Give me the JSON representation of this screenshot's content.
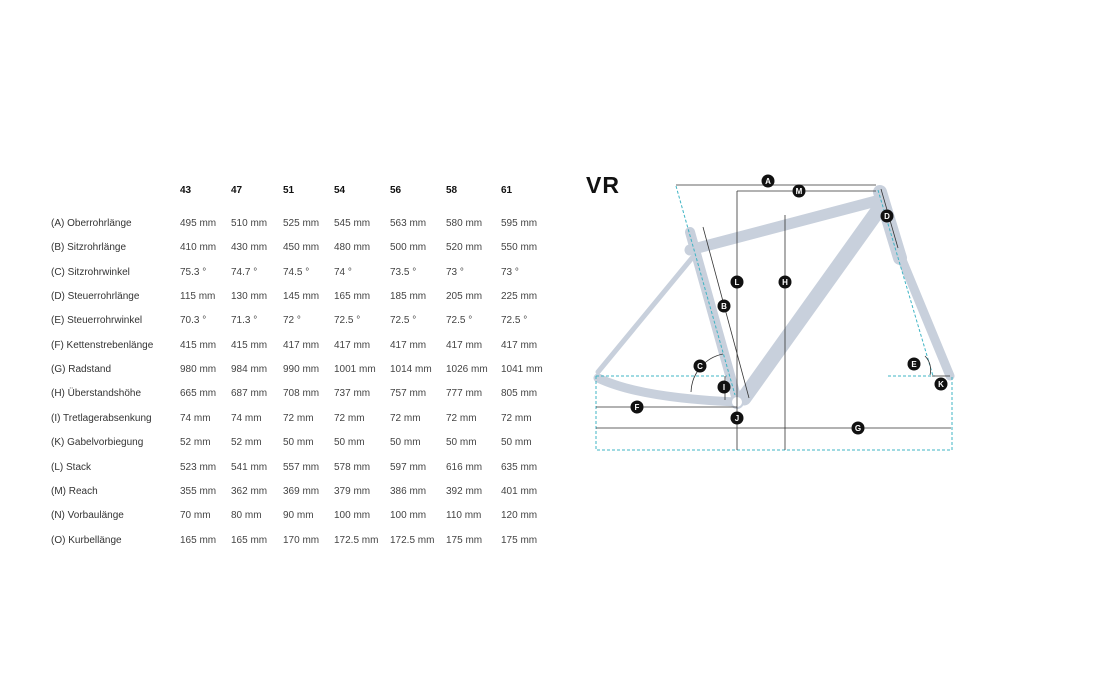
{
  "title": "VR",
  "sizes": [
    "43",
    "47",
    "51",
    "54",
    "56",
    "58",
    "61"
  ],
  "rows": [
    {
      "label": "(A) Oberrohrlänge",
      "values": [
        "495 mm",
        "510 mm",
        "525 mm",
        "545 mm",
        "563 mm",
        "580 mm",
        "595 mm"
      ]
    },
    {
      "label": "(B) Sitzrohrlänge",
      "values": [
        "410 mm",
        "430 mm",
        "450 mm",
        "480 mm",
        "500 mm",
        "520 mm",
        "550 mm"
      ]
    },
    {
      "label": "(C) Sitzrohrwinkel",
      "values": [
        "75.3 °",
        "74.7 °",
        "74.5 °",
        "74 °",
        "73.5 °",
        "73 °",
        "73 °"
      ]
    },
    {
      "label": "(D) Steuerrohrlänge",
      "values": [
        "115 mm",
        "130 mm",
        "145 mm",
        "165 mm",
        "185 mm",
        "205 mm",
        "225 mm"
      ]
    },
    {
      "label": "(E) Steuerrohrwinkel",
      "values": [
        "70.3 °",
        "71.3 °",
        "72 °",
        "72.5 °",
        "72.5 °",
        "72.5 °",
        "72.5 °"
      ]
    },
    {
      "label": "(F) Kettenstrebenlänge",
      "values": [
        "415 mm",
        "415 mm",
        "417 mm",
        "417 mm",
        "417 mm",
        "417 mm",
        "417 mm"
      ]
    },
    {
      "label": "(G) Radstand",
      "values": [
        "980 mm",
        "984 mm",
        "990 mm",
        "1001 mm",
        "1014 mm",
        "1026 mm",
        "1041 mm"
      ]
    },
    {
      "label": "(H) Überstandshöhe",
      "values": [
        "665 mm",
        "687 mm",
        "708 mm",
        "737 mm",
        "757 mm",
        "777 mm",
        "805 mm"
      ]
    },
    {
      "label": "(I) Tretlagerabsenkung",
      "values": [
        "74 mm",
        "74 mm",
        "72 mm",
        "72 mm",
        "72 mm",
        "72 mm",
        "72 mm"
      ]
    },
    {
      "label": "(K) Gabelvorbiegung",
      "values": [
        "52 mm",
        "52 mm",
        "50 mm",
        "50 mm",
        "50 mm",
        "50 mm",
        "50 mm"
      ]
    },
    {
      "label": "(L) Stack",
      "values": [
        "523 mm",
        "541 mm",
        "557 mm",
        "578 mm",
        "597 mm",
        "616 mm",
        "635 mm"
      ]
    },
    {
      "label": "(M) Reach",
      "values": [
        "355 mm",
        "362 mm",
        "369 mm",
        "379 mm",
        "386 mm",
        "392 mm",
        "401 mm"
      ]
    },
    {
      "label": "(N) Vorbaulänge",
      "values": [
        "70 mm",
        "80 mm",
        "90 mm",
        "100 mm",
        "100 mm",
        "110 mm",
        "120 mm"
      ]
    },
    {
      "label": "(O) Kurbellänge",
      "values": [
        "165 mm",
        "165 mm",
        "170 mm",
        "172.5 mm",
        "172.5 mm",
        "175 mm",
        "175 mm"
      ]
    }
  ],
  "diagram": {
    "labels": [
      "A",
      "M",
      "D",
      "L",
      "H",
      "B",
      "C",
      "E",
      "I",
      "K",
      "J",
      "F",
      "G"
    ],
    "colors": {
      "frame": "#c8d0dc",
      "guide": "#3fb4c4",
      "dimension": "#333333",
      "marker": "#111111"
    }
  }
}
